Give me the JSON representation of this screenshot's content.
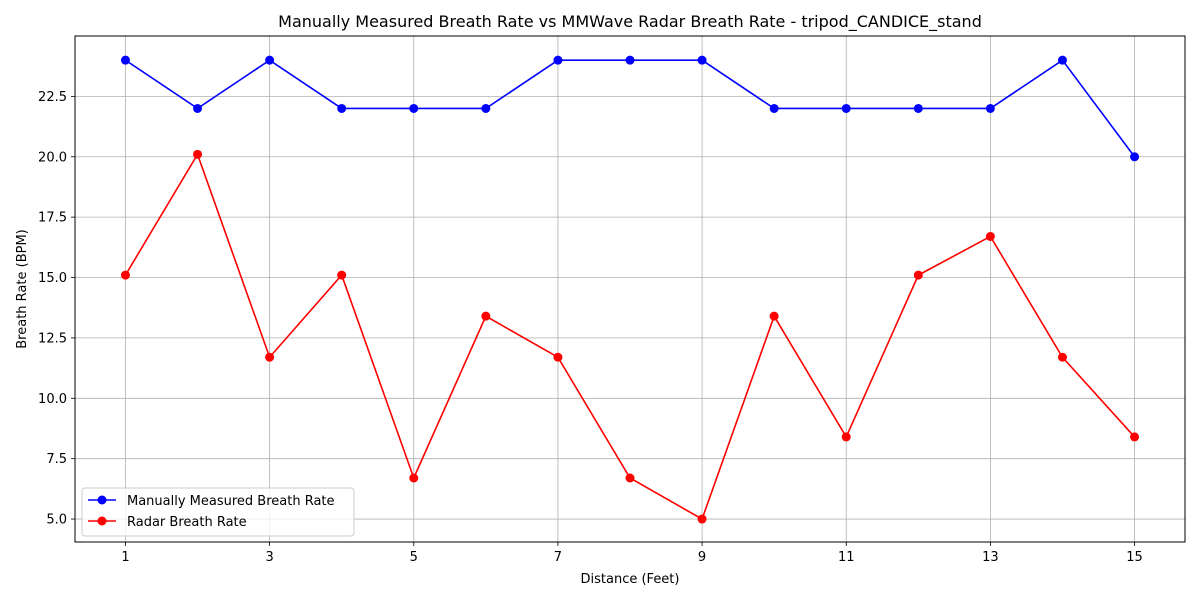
{
  "chart_data": {
    "type": "line",
    "title": "Manually Measured Breath Rate vs MMWave Radar Breath Rate - tripod_CANDICE_stand",
    "xlabel": "Distance (Feet)",
    "ylabel": "Breath Rate (BPM)",
    "x": [
      1,
      2,
      3,
      4,
      5,
      6,
      7,
      8,
      9,
      10,
      11,
      12,
      13,
      14,
      15
    ],
    "xticks": [
      1,
      3,
      5,
      7,
      9,
      11,
      13,
      15
    ],
    "yticks": [
      5.0,
      7.5,
      10.0,
      12.5,
      15.0,
      17.5,
      20.0,
      22.5
    ],
    "ytick_labels": [
      "5.0",
      "7.5",
      "10.0",
      "12.5",
      "15.0",
      "17.5",
      "20.0",
      "22.5"
    ],
    "xlim": [
      0.3,
      15.7
    ],
    "ylim": [
      4.05,
      25.0
    ],
    "grid": true,
    "legend_position": "bottom-left",
    "series": [
      {
        "name": "Manually Measured Breath Rate",
        "color": "#0000ff",
        "values": [
          24,
          22,
          24,
          22,
          22,
          22,
          24,
          24,
          24,
          22,
          22,
          22,
          22,
          24,
          20
        ]
      },
      {
        "name": "Radar Breath Rate",
        "color": "#ff0000",
        "values": [
          15.1,
          20.1,
          11.7,
          15.1,
          6.7,
          13.4,
          11.7,
          6.7,
          5.0,
          13.4,
          8.4,
          15.1,
          16.7,
          11.7,
          8.4
        ]
      }
    ]
  }
}
